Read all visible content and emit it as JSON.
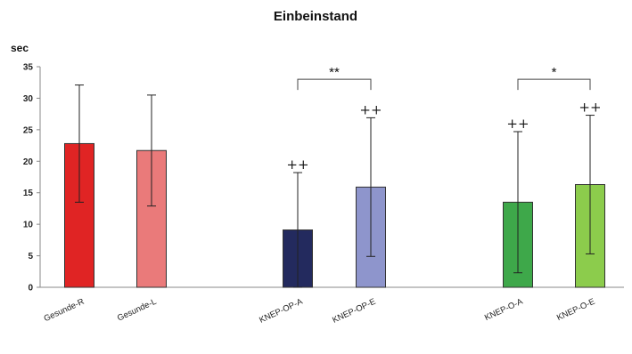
{
  "chart_data": {
    "type": "bar",
    "title": "Einbeinstand",
    "ylabel": "sec",
    "xlabel": "",
    "ylim": [
      0,
      35
    ],
    "yticks": [
      0,
      5,
      10,
      15,
      20,
      25,
      30,
      35
    ],
    "grid": false,
    "categories": [
      "Gesunde-R",
      "Gesunde-L",
      "KNEP-OP-A",
      "KNEP-OP-E",
      "KNEP-O-A",
      "KNEP-O-E"
    ],
    "values": [
      22.8,
      21.7,
      9.1,
      15.9,
      13.5,
      16.3
    ],
    "error": [
      9.3,
      8.8,
      9.1,
      11.0,
      11.2,
      11.0
    ],
    "colors": [
      "#e02424",
      "#ea7a7a",
      "#232a5e",
      "#8e95cc",
      "#3ea84a",
      "#8ccc4c"
    ],
    "annotations": [
      "",
      "",
      "++",
      "++",
      "++",
      "++"
    ],
    "significance": [
      {
        "from": 2,
        "to": 3,
        "label": "**",
        "y": 33
      },
      {
        "from": 4,
        "to": 5,
        "label": "*",
        "y": 33
      }
    ]
  }
}
